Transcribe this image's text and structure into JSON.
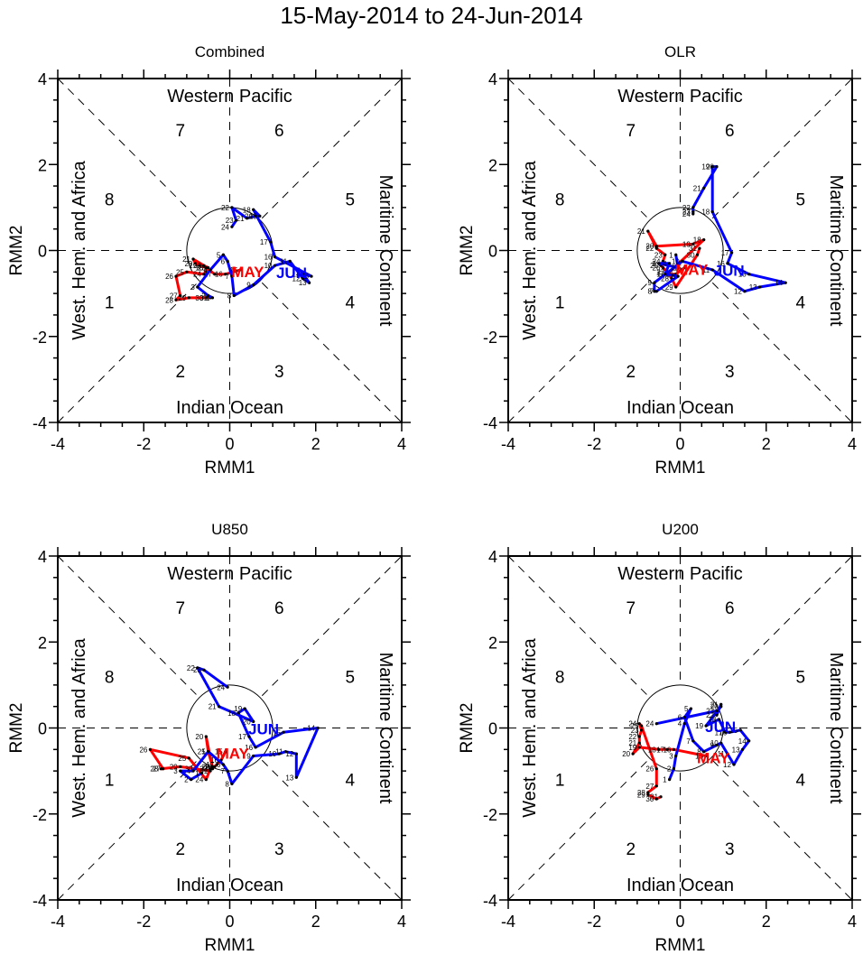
{
  "figure": {
    "title": "15-May-2014 to 24-Jun-2014"
  },
  "colors": {
    "may": "#ff0000",
    "jun": "#0000ff",
    "axis": "#000000"
  },
  "chart_data": [
    {
      "type": "line",
      "title": "Combined",
      "xlabel": "RMM1",
      "ylabel": "RMM2",
      "xlim": [
        -4,
        4
      ],
      "ylim": [
        -4,
        4
      ],
      "xticks": [
        "-4",
        "-2",
        "0",
        "2",
        "4"
      ],
      "yticks": [
        "-4",
        "-2",
        "0",
        "2",
        "4"
      ],
      "phase_labels": [
        "1",
        "2",
        "3",
        "4",
        "5",
        "6",
        "7",
        "8"
      ],
      "region_labels": {
        "top": "Western Pacific",
        "bottom": "Indian Ocean",
        "left": "West. Hem. and Africa",
        "right": "Maritime Continent"
      },
      "unit_circle_radius": 1,
      "series": [
        {
          "name": "MAY",
          "color": "#ff0000",
          "days": [
            15,
            16,
            17,
            18,
            19,
            20,
            21,
            22,
            23,
            24,
            25,
            26,
            27,
            28,
            29,
            30,
            31
          ],
          "x": [
            0.25,
            -0.1,
            -0.35,
            -0.55,
            -0.7,
            -0.8,
            -0.85,
            -0.6,
            -0.5,
            -0.6,
            -1.0,
            -1.25,
            -1.15,
            -1.25,
            -0.95,
            -0.55,
            -0.45
          ],
          "y": [
            -0.45,
            -0.55,
            -0.55,
            -0.4,
            -0.35,
            -0.3,
            -0.2,
            -0.35,
            -0.4,
            -0.55,
            -0.5,
            -0.6,
            -1.05,
            -1.15,
            -1.1,
            -1.1,
            -1.1
          ]
        },
        {
          "name": "JUN",
          "color": "#0000ff",
          "days": [
            1,
            2,
            3,
            4,
            5,
            6,
            7,
            8,
            9,
            10,
            11,
            12,
            13,
            14,
            15,
            16,
            17,
            18,
            19,
            20,
            21,
            22,
            23,
            24
          ],
          "x": [
            -0.4,
            -0.5,
            -0.75,
            -0.45,
            -0.15,
            -0.05,
            0.05,
            0.1,
            0.55,
            1.05,
            1.4,
            1.7,
            1.85,
            1.7,
            1.9,
            1.05,
            0.95,
            0.55,
            0.7,
            0.6,
            0.4,
            0.05,
            0.15,
            0.05
          ],
          "y": [
            -1.1,
            -1.05,
            -0.85,
            -0.45,
            -0.1,
            -0.25,
            -0.6,
            -1.05,
            -0.8,
            -0.35,
            -0.25,
            -0.65,
            -0.75,
            -0.55,
            -0.6,
            -0.15,
            0.2,
            0.95,
            0.8,
            0.8,
            0.75,
            1.0,
            0.7,
            0.55
          ]
        },
        {
          "name": "labels",
          "may_label": "MAY",
          "jun_label": "JUN"
        }
      ]
    },
    {
      "type": "line",
      "title": "OLR",
      "xlabel": "RMM1",
      "ylabel": "RMM2",
      "xlim": [
        -4,
        4
      ],
      "ylim": [
        -4,
        4
      ],
      "xticks": [
        "-4",
        "-2",
        "0",
        "2",
        "4"
      ],
      "yticks": [
        "-4",
        "-2",
        "0",
        "2",
        "4"
      ],
      "phase_labels": [
        "1",
        "2",
        "3",
        "4",
        "5",
        "6",
        "7",
        "8"
      ],
      "region_labels": {
        "top": "Western Pacific",
        "bottom": "Indian Ocean",
        "left": "West. Hem. and Africa",
        "right": "Maritime Continent"
      },
      "unit_circle_radius": 1,
      "series": [
        {
          "name": "MAY",
          "color": "#ff0000",
          "days": [
            15,
            16,
            17,
            18,
            19,
            20,
            21,
            22,
            23,
            24,
            25,
            26,
            27,
            28,
            29,
            30,
            31
          ],
          "x": [
            0.1,
            -0.1,
            -0.3,
            0.55,
            0.3,
            -0.55,
            -0.75,
            -0.55,
            -0.35,
            -0.4,
            -0.45,
            -0.4,
            -0.3,
            -0.2,
            -0.1,
            0.4,
            0.45
          ],
          "y": [
            -0.4,
            -0.55,
            -0.55,
            0.25,
            0.15,
            0.1,
            0.45,
            0.05,
            -0.1,
            -0.25,
            -0.35,
            -0.4,
            -0.5,
            -0.65,
            -0.85,
            -0.1,
            0.05
          ]
        },
        {
          "name": "JUN",
          "color": "#0000ff",
          "days": [
            1,
            2,
            3,
            4,
            5,
            6,
            7,
            8,
            9,
            10,
            11,
            12,
            13,
            14,
            15,
            16,
            17,
            18,
            19,
            20,
            21,
            22,
            23,
            24
          ],
          "x": [
            -0.1,
            -0.05,
            -0.5,
            -0.25,
            -0.35,
            -0.05,
            -0.55,
            -0.6,
            -0.6,
            0.05,
            0.75,
            1.5,
            1.85,
            2.45,
            1.6,
            1.1,
            1.2,
            0.75,
            0.75,
            0.85,
            0.55,
            0.3,
            0.3,
            0.3
          ],
          "y": [
            -0.1,
            -0.4,
            -0.3,
            -0.3,
            -0.55,
            -0.6,
            -0.95,
            -0.95,
            -0.75,
            -0.25,
            -0.45,
            -0.95,
            -0.85,
            -0.75,
            -0.55,
            -0.3,
            -0.05,
            0.9,
            1.95,
            1.95,
            1.45,
            1.0,
            0.9,
            0.85
          ]
        },
        {
          "name": "labels",
          "may_label": "MAY",
          "jun_label": "JUN"
        }
      ]
    },
    {
      "type": "line",
      "title": "U850",
      "xlabel": "RMM1",
      "ylabel": "RMM2",
      "xlim": [
        -4,
        4
      ],
      "ylim": [
        -4,
        4
      ],
      "xticks": [
        "-4",
        "-2",
        "0",
        "2",
        "4"
      ],
      "yticks": [
        "-4",
        "-2",
        "0",
        "2",
        "4"
      ],
      "phase_labels": [
        "1",
        "2",
        "3",
        "4",
        "5",
        "6",
        "7",
        "8"
      ],
      "region_labels": {
        "top": "Western Pacific",
        "bottom": "Indian Ocean",
        "left": "West. Hem. and Africa",
        "right": "Maritime Continent"
      },
      "unit_circle_radius": 1,
      "series": [
        {
          "name": "MAY",
          "color": "#ff0000",
          "days": [
            15,
            16,
            17,
            18,
            19,
            20,
            21,
            22,
            23,
            24,
            25,
            26,
            27,
            28,
            29,
            30,
            31
          ],
          "x": [
            -0.1,
            -0.2,
            -0.3,
            -0.35,
            -0.4,
            -0.55,
            -0.5,
            -0.4,
            -0.45,
            -0.55,
            -0.95,
            -1.85,
            -1.55,
            -1.6,
            -1.15,
            -0.8,
            -0.45
          ],
          "y": [
            -0.55,
            -0.75,
            -0.85,
            -0.9,
            -0.95,
            -0.2,
            -0.55,
            -0.9,
            -0.95,
            -1.2,
            -0.7,
            -0.5,
            -0.95,
            -0.95,
            -0.9,
            -0.95,
            -1.0
          ]
        },
        {
          "name": "JUN",
          "color": "#0000ff",
          "days": [
            1,
            2,
            3,
            4,
            5,
            6,
            7,
            8,
            9,
            10,
            11,
            12,
            13,
            14,
            15,
            16,
            17,
            18,
            19,
            20,
            21,
            22,
            23,
            24
          ],
          "x": [
            -0.65,
            -0.9,
            -1.15,
            -0.85,
            -0.5,
            -0.15,
            -0.05,
            0.05,
            0.55,
            1.15,
            1.3,
            1.55,
            1.55,
            2.05,
            1.25,
            0.6,
            0.45,
            0.2,
            0.35,
            0.55,
            -0.25,
            -0.75,
            -0.6,
            -0.05
          ],
          "y": [
            -1.05,
            -1.2,
            -1.0,
            -1.0,
            -0.55,
            -0.85,
            -1.0,
            -1.3,
            -0.65,
            -0.6,
            -0.55,
            -0.6,
            -1.15,
            0.0,
            -0.1,
            -0.45,
            -0.2,
            0.35,
            0.45,
            0.15,
            0.5,
            1.4,
            1.35,
            0.95
          ]
        },
        {
          "name": "labels",
          "may_label": "MAY",
          "jun_label": "JUN"
        }
      ]
    },
    {
      "type": "line",
      "title": "U200",
      "xlabel": "RMM1",
      "ylabel": "RMM2",
      "xlim": [
        -4,
        4
      ],
      "ylim": [
        -4,
        4
      ],
      "xticks": [
        "-4",
        "-2",
        "0",
        "2",
        "4"
      ],
      "yticks": [
        "-4",
        "-2",
        "0",
        "2",
        "4"
      ],
      "phase_labels": [
        "1",
        "2",
        "3",
        "4",
        "5",
        "6",
        "7",
        "8"
      ],
      "region_labels": {
        "top": "Western Pacific",
        "bottom": "Indian Ocean",
        "left": "West. Hem. and Africa",
        "right": "Maritime Continent"
      },
      "unit_circle_radius": 1,
      "series": [
        {
          "name": "MAY",
          "color": "#ff0000",
          "days": [
            15,
            16,
            17,
            18,
            19,
            20,
            21,
            22,
            23,
            24,
            25,
            26,
            27,
            28,
            29,
            30,
            31
          ],
          "x": [
            0.6,
            -0.15,
            -0.3,
            -0.5,
            -0.95,
            -1.1,
            -0.95,
            -0.95,
            -0.9,
            -0.95,
            -0.9,
            -0.55,
            -0.55,
            -0.75,
            -0.75,
            -0.55,
            -0.45
          ],
          "y": [
            -0.65,
            -0.5,
            -0.5,
            -0.5,
            -0.45,
            -0.6,
            -0.35,
            -0.2,
            -0.05,
            0.1,
            0.05,
            -0.95,
            -1.35,
            -1.5,
            -1.55,
            -1.65,
            -1.6
          ]
        },
        {
          "name": "JUN",
          "color": "#0000ff",
          "days": [
            1,
            2,
            3,
            4,
            5,
            6,
            7,
            8,
            9,
            10,
            11,
            12,
            13,
            14,
            15,
            16,
            17,
            18,
            19,
            20,
            21,
            22,
            23,
            24
          ],
          "x": [
            -0.25,
            -0.15,
            -0.1,
            0.1,
            0.25,
            0.1,
            0.3,
            0.55,
            0.85,
            0.95,
            1.1,
            1.25,
            1.45,
            1.6,
            1.4,
            1.15,
            1.05,
            0.9,
            0.6,
            0.95,
            0.95,
            0.85,
            0.85,
            -0.55
          ],
          "y": [
            -1.2,
            -0.95,
            -0.65,
            0.1,
            0.45,
            0.25,
            -0.3,
            -0.55,
            -0.4,
            -0.35,
            -0.6,
            -0.85,
            -0.5,
            -0.3,
            -0.05,
            -0.1,
            -0.1,
            0.2,
            0.05,
            0.5,
            0.55,
            0.3,
            0.4,
            0.1
          ]
        },
        {
          "name": "labels",
          "may_label": "MAY",
          "jun_label": "JUN"
        }
      ]
    }
  ]
}
